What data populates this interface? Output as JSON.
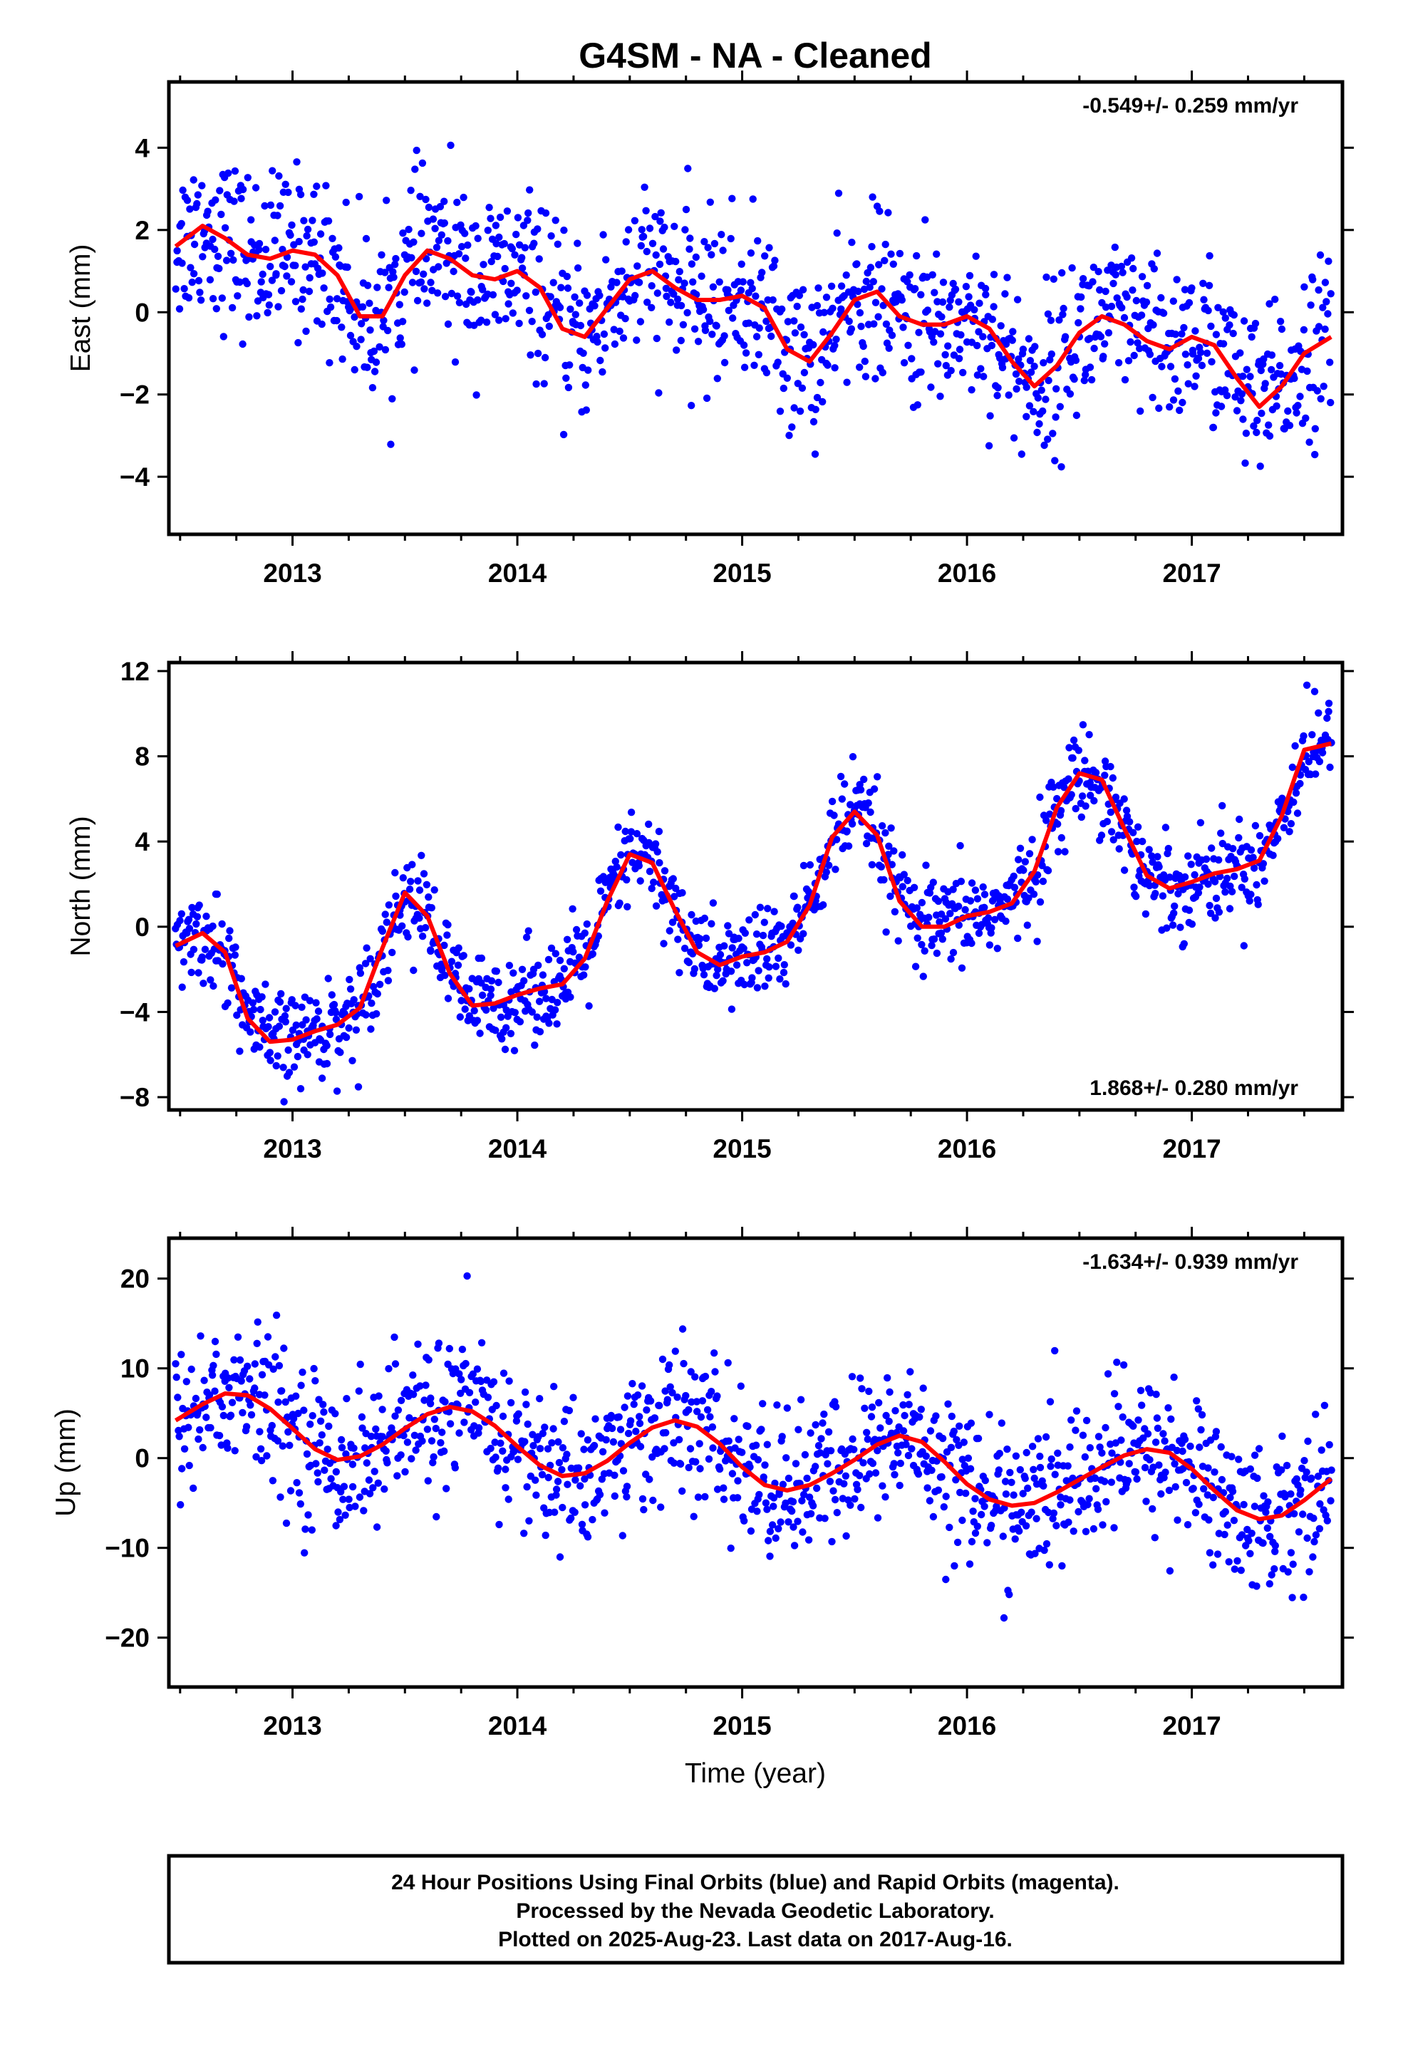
{
  "title": "G4SM  - NA - Cleaned",
  "xlabel": "Time (year)",
  "footer": {
    "line1": "24 Hour Positions Using Final Orbits (blue) and Rapid Orbits (magenta).",
    "line2": "Processed by the Nevada Geodetic Laboratory.",
    "line3": "Plotted on 2025-Aug-23. Last data on 2017-Aug-16."
  },
  "colors": {
    "points": "#0000ff",
    "fit": "#ff0000",
    "frame": "#000000"
  },
  "chart_data": [
    {
      "type": "scatter",
      "name": "east",
      "ylabel": "East (mm)",
      "rate_label": "-0.549+/- 0.259 mm/yr",
      "rate_position": "top-right",
      "xlim": [
        2012.45,
        2017.67
      ],
      "ylim": [
        -5.4,
        5.6
      ],
      "xticks": [
        2013,
        2014,
        2015,
        2016,
        2017
      ],
      "yticks": [
        -4,
        -2,
        0,
        2,
        4
      ],
      "fit_line": {
        "x": [
          2012.48,
          2012.6,
          2012.7,
          2012.8,
          2012.9,
          2013.0,
          2013.1,
          2013.2,
          2013.3,
          2013.4,
          2013.5,
          2013.6,
          2013.7,
          2013.8,
          2013.9,
          2014.0,
          2014.1,
          2014.2,
          2014.3,
          2014.4,
          2014.5,
          2014.6,
          2014.7,
          2014.8,
          2014.9,
          2015.0,
          2015.1,
          2015.2,
          2015.3,
          2015.4,
          2015.5,
          2015.6,
          2015.7,
          2015.8,
          2015.9,
          2016.0,
          2016.1,
          2016.2,
          2016.3,
          2016.4,
          2016.5,
          2016.6,
          2016.7,
          2016.8,
          2016.9,
          2017.0,
          2017.1,
          2017.2,
          2017.3,
          2017.4,
          2017.5,
          2017.62
        ],
        "y": [
          1.6,
          2.1,
          1.8,
          1.4,
          1.3,
          1.5,
          1.4,
          0.9,
          -0.1,
          -0.1,
          0.9,
          1.5,
          1.3,
          0.9,
          0.8,
          1.0,
          0.6,
          -0.4,
          -0.6,
          0.1,
          0.8,
          1.0,
          0.6,
          0.3,
          0.3,
          0.4,
          0.1,
          -0.9,
          -1.2,
          -0.5,
          0.3,
          0.5,
          -0.1,
          -0.3,
          -0.3,
          -0.1,
          -0.4,
          -1.2,
          -1.8,
          -1.3,
          -0.5,
          -0.1,
          -0.3,
          -0.7,
          -0.9,
          -0.6,
          -0.8,
          -1.6,
          -2.3,
          -1.8,
          -1.0,
          -0.6
        ]
      }
    },
    {
      "type": "scatter",
      "name": "north",
      "ylabel": "North (mm)",
      "rate_label": "1.868+/- 0.280 mm/yr",
      "rate_position": "bottom-right",
      "xlim": [
        2012.45,
        2017.67
      ],
      "ylim": [
        -8.6,
        12.4
      ],
      "xticks": [
        2013,
        2014,
        2015,
        2016,
        2017
      ],
      "yticks": [
        -8,
        -4,
        0,
        4,
        8,
        12
      ],
      "fit_line": {
        "x": [
          2012.48,
          2012.6,
          2012.7,
          2012.8,
          2012.9,
          2013.0,
          2013.1,
          2013.2,
          2013.3,
          2013.4,
          2013.5,
          2013.6,
          2013.7,
          2013.8,
          2013.9,
          2014.0,
          2014.1,
          2014.2,
          2014.3,
          2014.4,
          2014.5,
          2014.6,
          2014.7,
          2014.8,
          2014.9,
          2015.0,
          2015.1,
          2015.2,
          2015.3,
          2015.4,
          2015.5,
          2015.6,
          2015.7,
          2015.8,
          2015.9,
          2016.0,
          2016.1,
          2016.2,
          2016.3,
          2016.4,
          2016.5,
          2016.6,
          2016.7,
          2016.8,
          2016.9,
          2017.0,
          2017.1,
          2017.2,
          2017.3,
          2017.4,
          2017.5,
          2017.62
        ],
        "y": [
          -0.9,
          -0.3,
          -1.2,
          -4.3,
          -5.4,
          -5.3,
          -4.9,
          -4.6,
          -3.8,
          -1.0,
          1.6,
          0.5,
          -2.2,
          -3.7,
          -3.6,
          -3.2,
          -2.9,
          -2.7,
          -1.5,
          1.2,
          3.4,
          3.0,
          0.8,
          -1.2,
          -1.8,
          -1.4,
          -1.2,
          -0.7,
          1.0,
          4.2,
          5.4,
          4.3,
          1.2,
          0.0,
          0.0,
          0.5,
          0.7,
          1.1,
          2.6,
          5.6,
          7.2,
          6.9,
          4.6,
          2.4,
          1.8,
          2.1,
          2.5,
          2.7,
          3.1,
          5.2,
          8.3,
          8.6
        ]
      }
    },
    {
      "type": "scatter",
      "name": "up",
      "ylabel": "Up (mm)",
      "rate_label": "-1.634+/- 0.939 mm/yr",
      "rate_position": "top-right",
      "xlim": [
        2012.45,
        2017.67
      ],
      "ylim": [
        -25.5,
        24.5
      ],
      "xticks": [
        2013,
        2014,
        2015,
        2016,
        2017
      ],
      "yticks": [
        -20,
        -10,
        0,
        10,
        20
      ],
      "fit_line": {
        "x": [
          2012.48,
          2012.6,
          2012.7,
          2012.8,
          2012.9,
          2013.0,
          2013.1,
          2013.2,
          2013.3,
          2013.4,
          2013.5,
          2013.6,
          2013.7,
          2013.8,
          2013.9,
          2014.0,
          2014.1,
          2014.2,
          2014.3,
          2014.4,
          2014.5,
          2014.6,
          2014.7,
          2014.8,
          2014.9,
          2015.0,
          2015.1,
          2015.2,
          2015.3,
          2015.4,
          2015.5,
          2015.6,
          2015.7,
          2015.8,
          2015.9,
          2016.0,
          2016.1,
          2016.2,
          2016.3,
          2016.4,
          2016.5,
          2016.6,
          2016.7,
          2016.8,
          2016.9,
          2017.0,
          2017.1,
          2017.2,
          2017.3,
          2017.4,
          2017.5,
          2017.62
        ],
        "y": [
          4.2,
          6.0,
          7.2,
          7.0,
          5.5,
          3.3,
          1.0,
          -0.2,
          0.2,
          1.5,
          3.3,
          4.9,
          5.7,
          5.2,
          3.6,
          1.3,
          -0.8,
          -2.0,
          -1.7,
          -0.3,
          1.7,
          3.4,
          4.2,
          3.5,
          1.6,
          -1.0,
          -3.0,
          -3.6,
          -3.0,
          -1.7,
          -0.2,
          1.5,
          2.5,
          1.8,
          -0.4,
          -2.9,
          -4.6,
          -5.3,
          -5.0,
          -3.8,
          -2.4,
          -1.0,
          0.3,
          1.0,
          0.6,
          -1.2,
          -3.6,
          -5.8,
          -6.8,
          -6.4,
          -4.7,
          -2.3
        ]
      }
    }
  ]
}
